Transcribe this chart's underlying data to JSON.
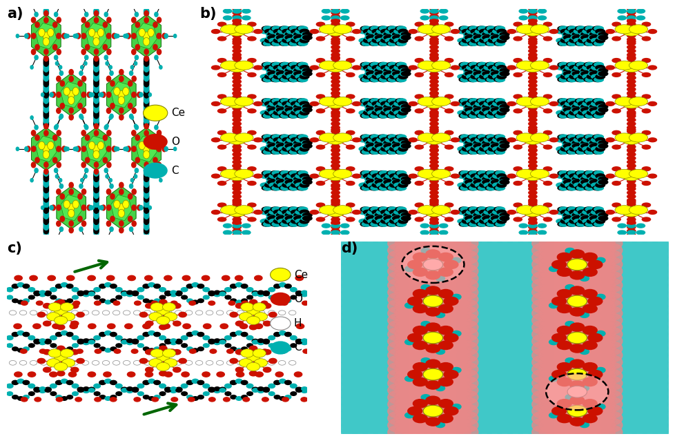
{
  "figsize": [
    9.79,
    6.42
  ],
  "dpi": 100,
  "background": "#ffffff",
  "panel_labels": [
    "a)",
    "b)",
    "c)",
    "d)"
  ],
  "panel_label_fontsize": 15,
  "panel_label_fontweight": "bold",
  "colors": {
    "Ce": "#ffff00",
    "O": "#cc1100",
    "C": "#00b0b0",
    "C_dark": "#000000",
    "green_poly": "#33cc33",
    "green_edge": "#006600",
    "bg": "#ffffff",
    "pink_bg": "#f5b8b8",
    "teal_bg": "#60d0d0"
  },
  "legend_top": {
    "items": [
      "Ce",
      "O",
      "C"
    ],
    "colors": [
      "#ffff00",
      "#cc1100",
      "#00b0b0"
    ],
    "edge_colors": [
      "#888800",
      "none",
      "none"
    ],
    "fontsize": 11
  },
  "legend_bottom": {
    "items": [
      "Ce",
      "O",
      "H",
      "C"
    ],
    "colors": [
      "#ffff00",
      "#cc1100",
      "#ffffff",
      "#00b0b0"
    ],
    "edge_colors": [
      "#888800",
      "none",
      "#888888",
      "none"
    ],
    "fontsize": 11
  }
}
